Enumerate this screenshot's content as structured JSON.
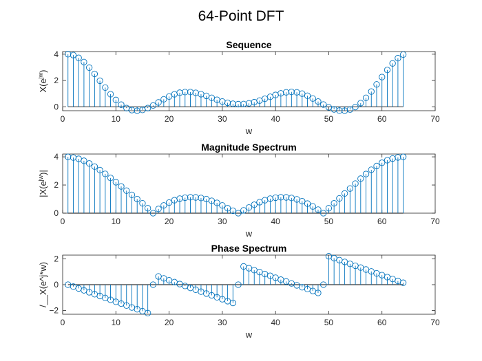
{
  "figure": {
    "title": "64-Point DFT"
  },
  "colors": {
    "stem": "#0072BD",
    "axis": "#262626",
    "baseline": "#000000"
  },
  "chart_data": [
    {
      "type": "stem",
      "title": "Sequence",
      "xlabel": "w",
      "ylabel": "X(e^{jw})",
      "xlim": [
        0,
        70
      ],
      "ylim": [
        -0.3,
        4.2
      ],
      "xticks": [
        0,
        10,
        20,
        30,
        40,
        50,
        60,
        70
      ],
      "yticks": [
        0,
        2,
        4
      ],
      "grid": false,
      "x": [
        1,
        2,
        3,
        4,
        5,
        6,
        7,
        8,
        9,
        10,
        11,
        12,
        13,
        14,
        15,
        16,
        17,
        18,
        19,
        20,
        21,
        22,
        23,
        24,
        25,
        26,
        27,
        28,
        29,
        30,
        31,
        32,
        33,
        34,
        35,
        36,
        37,
        38,
        39,
        40,
        41,
        42,
        43,
        44,
        45,
        46,
        47,
        48,
        49,
        50,
        51,
        52,
        53,
        54,
        55,
        56,
        57,
        58,
        59,
        60,
        61,
        62,
        63,
        64
      ],
      "values": [
        4.0,
        3.93,
        3.72,
        3.4,
        2.98,
        2.5,
        1.98,
        1.46,
        0.96,
        0.52,
        0.16,
        -0.1,
        -0.25,
        -0.3,
        -0.24,
        -0.1,
        0.1,
        0.33,
        0.57,
        0.78,
        0.95,
        1.07,
        1.12,
        1.12,
        1.06,
        0.96,
        0.83,
        0.68,
        0.53,
        0.4,
        0.3,
        0.23,
        0.2,
        0.21,
        0.26,
        0.35,
        0.47,
        0.61,
        0.76,
        0.9,
        1.02,
        1.1,
        1.13,
        1.1,
        1.0,
        0.84,
        0.63,
        0.4,
        0.17,
        -0.04,
        -0.2,
        -0.29,
        -0.3,
        -0.21,
        -0.02,
        0.28,
        0.68,
        1.16,
        1.7,
        2.26,
        2.8,
        3.3,
        3.7,
        3.97
      ]
    },
    {
      "type": "stem",
      "title": "Magnitude Spectrum",
      "xlabel": "w",
      "ylabel": "|X(e^{jw})|",
      "xlim": [
        0,
        70
      ],
      "ylim": [
        0,
        4.2
      ],
      "xticks": [
        0,
        10,
        20,
        30,
        40,
        50,
        60,
        70
      ],
      "yticks": [
        0,
        2,
        4
      ],
      "grid": false,
      "x": [
        1,
        2,
        3,
        4,
        5,
        6,
        7,
        8,
        9,
        10,
        11,
        12,
        13,
        14,
        15,
        16,
        17,
        18,
        19,
        20,
        21,
        22,
        23,
        24,
        25,
        26,
        27,
        28,
        29,
        30,
        31,
        32,
        33,
        34,
        35,
        36,
        37,
        38,
        39,
        40,
        41,
        42,
        43,
        44,
        45,
        46,
        47,
        48,
        49,
        50,
        51,
        52,
        53,
        54,
        55,
        56,
        57,
        58,
        59,
        60,
        61,
        62,
        63,
        64
      ],
      "values": [
        4.0,
        3.95,
        3.86,
        3.72,
        3.53,
        3.31,
        3.06,
        2.79,
        2.5,
        2.2,
        1.9,
        1.6,
        1.3,
        1.0,
        0.7,
        0.35,
        0.0,
        0.3,
        0.55,
        0.75,
        0.92,
        1.03,
        1.1,
        1.13,
        1.12,
        1.08,
        1.0,
        0.88,
        0.73,
        0.55,
        0.35,
        0.17,
        0.0,
        0.2,
        0.4,
        0.6,
        0.78,
        0.92,
        1.03,
        1.1,
        1.13,
        1.12,
        1.08,
        0.98,
        0.85,
        0.68,
        0.48,
        0.25,
        0.0,
        0.35,
        0.7,
        1.05,
        1.4,
        1.75,
        2.1,
        2.45,
        2.78,
        3.08,
        3.35,
        3.58,
        3.76,
        3.88,
        3.96,
        4.0
      ]
    },
    {
      "type": "stem",
      "title": "Phase Spectrum",
      "xlabel": "w",
      "ylabel": "/__X(e^j*w)",
      "xlim": [
        0,
        70
      ],
      "ylim": [
        -2.3,
        2.3
      ],
      "xticks": [
        0,
        10,
        20,
        30,
        40,
        50,
        60,
        70
      ],
      "yticks": [
        -2,
        0,
        2
      ],
      "grid": false,
      "x": [
        1,
        2,
        3,
        4,
        5,
        6,
        7,
        8,
        9,
        10,
        11,
        12,
        13,
        14,
        15,
        16,
        17,
        18,
        19,
        20,
        21,
        22,
        23,
        24,
        25,
        26,
        27,
        28,
        29,
        30,
        31,
        32,
        33,
        34,
        35,
        36,
        37,
        38,
        39,
        40,
        41,
        42,
        43,
        44,
        45,
        46,
        47,
        48,
        49,
        50,
        51,
        52,
        53,
        54,
        55,
        56,
        57,
        58,
        59,
        60,
        61,
        62,
        63,
        64
      ],
      "values": [
        0.0,
        -0.15,
        -0.29,
        -0.44,
        -0.59,
        -0.74,
        -0.88,
        -1.03,
        -1.18,
        -1.33,
        -1.47,
        -1.62,
        -1.77,
        -1.91,
        -2.06,
        -2.21,
        0.0,
        0.64,
        0.49,
        0.34,
        0.2,
        0.05,
        -0.1,
        -0.25,
        -0.39,
        -0.54,
        -0.69,
        -0.83,
        -0.98,
        -1.13,
        -1.28,
        -1.42,
        0.0,
        1.42,
        1.28,
        1.13,
        0.98,
        0.83,
        0.69,
        0.54,
        0.39,
        0.25,
        0.1,
        -0.05,
        -0.2,
        -0.34,
        -0.49,
        -0.64,
        0.0,
        2.21,
        2.06,
        1.91,
        1.77,
        1.62,
        1.47,
        1.33,
        1.18,
        1.03,
        0.88,
        0.74,
        0.59,
        0.44,
        0.29,
        0.15
      ]
    }
  ]
}
